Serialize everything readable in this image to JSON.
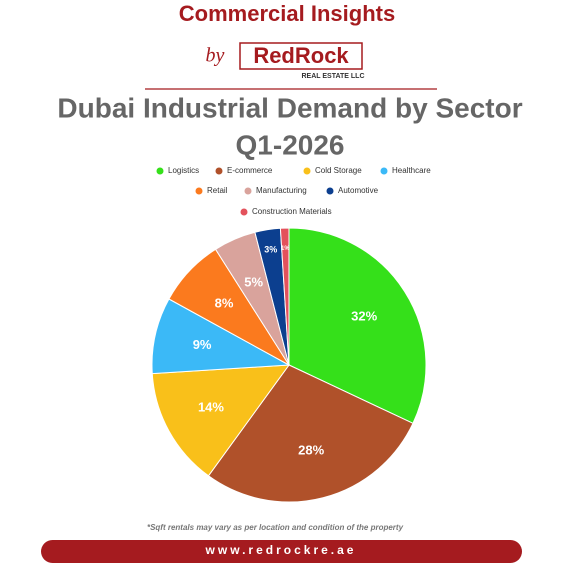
{
  "header": {
    "heading": "Commercial Insights",
    "by": "by",
    "logo": "RedRock",
    "logo_sub": "REAL ESTATE LLC"
  },
  "chart_data": {
    "type": "pie",
    "title": "Dubai Industrial Demand by Sector",
    "subtitle": "Q1-2026",
    "categories": [
      "Logistics",
      "E-commerce",
      "Cold Storage",
      "Healthcare",
      "Retail",
      "Manufacturing",
      "Automotive",
      "Construction Materials"
    ],
    "values": [
      32,
      28,
      14,
      9,
      8,
      5,
      3,
      1
    ],
    "value_labels": [
      "32%",
      "28%",
      "14%",
      "9%",
      "8%",
      "5%",
      "3%",
      "1%"
    ],
    "colors": [
      "#35e01a",
      "#b0512a",
      "#f9c01a",
      "#3bb9f7",
      "#fb7a1e",
      "#d9a39c",
      "#0c3f8f",
      "#e3525c"
    ],
    "legend": "top"
  },
  "footer": {
    "note": "*Sqft rentals may vary as per location and condition of the property",
    "website": "www.redrockre.ae"
  }
}
